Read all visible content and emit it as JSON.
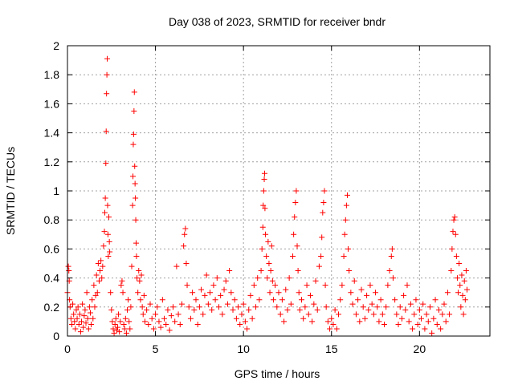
{
  "chart_data": {
    "type": "scatter",
    "title": "Day 038 of 2023, SRMTID for receiver bndr",
    "xlabel": "GPS time / hours",
    "ylabel": "SRMTID / TECUs",
    "xlim": [
      0,
      24
    ],
    "ylim": [
      0,
      2
    ],
    "xticks": [
      0,
      5,
      10,
      15,
      20
    ],
    "xtick_labels": [
      "0",
      "5",
      "10",
      "15",
      "20"
    ],
    "yticks": [
      0,
      0.2,
      0.4,
      0.6,
      0.8,
      1,
      1.2,
      1.4,
      1.6,
      1.8,
      2
    ],
    "ytick_labels": [
      "0",
      "0.2",
      "0.4",
      "0.6",
      "0.8",
      "1",
      "1.2",
      "1.4",
      "1.6",
      "1.8",
      "2"
    ],
    "grid": true,
    "marker": "+",
    "color": "#ff0000",
    "series": [
      {
        "name": "SRMTID",
        "points": [
          [
            0.0,
            0.3
          ],
          [
            0.05,
            0.48
          ],
          [
            0.08,
            0.45
          ],
          [
            0.1,
            0.38
          ],
          [
            0.12,
            0.25
          ],
          [
            0.15,
            0.2
          ],
          [
            0.2,
            0.12
          ],
          [
            0.25,
            0.08
          ],
          [
            0.3,
            0.22
          ],
          [
            0.35,
            0.15
          ],
          [
            0.4,
            0.1
          ],
          [
            0.45,
            0.05
          ],
          [
            0.5,
            0.18
          ],
          [
            0.55,
            0.12
          ],
          [
            0.6,
            0.2
          ],
          [
            0.65,
            0.08
          ],
          [
            0.7,
            0.15
          ],
          [
            0.75,
            0.03
          ],
          [
            0.8,
            0.1
          ],
          [
            0.85,
            0.22
          ],
          [
            0.9,
            0.06
          ],
          [
            0.95,
            0.14
          ],
          [
            1.0,
            0.18
          ],
          [
            1.05,
            0.09
          ],
          [
            1.1,
            0.3
          ],
          [
            1.15,
            0.12
          ],
          [
            1.2,
            0.05
          ],
          [
            1.25,
            0.2
          ],
          [
            1.3,
            0.16
          ],
          [
            1.35,
            0.08
          ],
          [
            1.4,
            0.25
          ],
          [
            1.45,
            0.12
          ],
          [
            1.5,
            0.35
          ],
          [
            1.55,
            0.2
          ],
          [
            1.6,
            0.28
          ],
          [
            1.65,
            0.42
          ],
          [
            1.7,
            0.3
          ],
          [
            1.75,
            0.5
          ],
          [
            1.8,
            0.38
          ],
          [
            1.85,
            0.45
          ],
          [
            1.9,
            0.52
          ],
          [
            1.95,
            0.4
          ],
          [
            2.0,
            0.48
          ],
          [
            2.05,
            0.62
          ],
          [
            2.1,
            0.72
          ],
          [
            2.12,
            0.85
          ],
          [
            2.15,
            0.95
          ],
          [
            2.18,
            1.19
          ],
          [
            2.2,
            1.41
          ],
          [
            2.22,
            1.67
          ],
          [
            2.24,
            1.8
          ],
          [
            2.26,
            1.91
          ],
          [
            2.28,
            0.9
          ],
          [
            2.3,
            0.7
          ],
          [
            2.32,
            0.55
          ],
          [
            2.35,
            0.82
          ],
          [
            2.38,
            0.65
          ],
          [
            2.4,
            0.58
          ],
          [
            2.45,
            0.3
          ],
          [
            2.5,
            0.18
          ],
          [
            2.55,
            0.1
          ],
          [
            2.6,
            0.05
          ],
          [
            2.65,
            0.02
          ],
          [
            2.7,
            0.08
          ],
          [
            2.75,
            0.12
          ],
          [
            2.8,
            0.04
          ],
          [
            2.85,
            0.06
          ],
          [
            2.9,
            0.15
          ],
          [
            2.95,
            0.03
          ],
          [
            3.0,
            0.1
          ],
          [
            3.05,
            0.35
          ],
          [
            3.1,
            0.38
          ],
          [
            3.15,
            0.3
          ],
          [
            3.2,
            0.08
          ],
          [
            3.25,
            0.05
          ],
          [
            3.3,
            0.12
          ],
          [
            3.35,
            0.02
          ],
          [
            3.4,
            0.18
          ],
          [
            3.45,
            0.25
          ],
          [
            3.5,
            0.1
          ],
          [
            3.55,
            0.05
          ],
          [
            3.6,
            0.2
          ],
          [
            3.65,
            0.48
          ],
          [
            3.7,
            0.9
          ],
          [
            3.72,
            1.1
          ],
          [
            3.74,
            1.32
          ],
          [
            3.76,
            1.39
          ],
          [
            3.78,
            1.55
          ],
          [
            3.8,
            1.68
          ],
          [
            3.82,
            1.17
          ],
          [
            3.84,
            1.05
          ],
          [
            3.86,
            0.95
          ],
          [
            3.88,
            0.8
          ],
          [
            3.9,
            0.64
          ],
          [
            3.92,
            0.55
          ],
          [
            3.95,
            0.4
          ],
          [
            4.0,
            0.3
          ],
          [
            4.05,
            0.45
          ],
          [
            4.1,
            0.38
          ],
          [
            4.15,
            0.25
          ],
          [
            4.2,
            0.42
          ],
          [
            4.25,
            0.2
          ],
          [
            4.3,
            0.15
          ],
          [
            4.35,
            0.28
          ],
          [
            4.4,
            0.1
          ],
          [
            4.5,
            0.18
          ],
          [
            4.6,
            0.08
          ],
          [
            4.7,
            0.22
          ],
          [
            4.8,
            0.12
          ],
          [
            4.9,
            0.05
          ],
          [
            5.0,
            0.15
          ],
          [
            5.1,
            0.2
          ],
          [
            5.2,
            0.1
          ],
          [
            5.3,
            0.06
          ],
          [
            5.4,
            0.25
          ],
          [
            5.5,
            0.12
          ],
          [
            5.6,
            0.08
          ],
          [
            5.7,
            0.18
          ],
          [
            5.8,
            0.04
          ],
          [
            5.9,
            0.14
          ],
          [
            6.0,
            0.2
          ],
          [
            6.1,
            0.1
          ],
          [
            6.2,
            0.48
          ],
          [
            6.3,
            0.15
          ],
          [
            6.4,
            0.08
          ],
          [
            6.5,
            0.22
          ],
          [
            6.6,
            0.62
          ],
          [
            6.65,
            0.7
          ],
          [
            6.7,
            0.74
          ],
          [
            6.75,
            0.5
          ],
          [
            6.8,
            0.35
          ],
          [
            6.9,
            0.2
          ],
          [
            7.0,
            0.12
          ],
          [
            7.1,
            0.3
          ],
          [
            7.2,
            0.18
          ],
          [
            7.3,
            0.25
          ],
          [
            7.4,
            0.08
          ],
          [
            7.5,
            0.2
          ],
          [
            7.6,
            0.32
          ],
          [
            7.7,
            0.15
          ],
          [
            7.8,
            0.28
          ],
          [
            7.9,
            0.42
          ],
          [
            8.0,
            0.22
          ],
          [
            8.1,
            0.3
          ],
          [
            8.2,
            0.18
          ],
          [
            8.3,
            0.35
          ],
          [
            8.4,
            0.25
          ],
          [
            8.5,
            0.4
          ],
          [
            8.6,
            0.2
          ],
          [
            8.7,
            0.28
          ],
          [
            8.8,
            0.15
          ],
          [
            8.9,
            0.32
          ],
          [
            9.0,
            0.38
          ],
          [
            9.1,
            0.22
          ],
          [
            9.2,
            0.45
          ],
          [
            9.3,
            0.3
          ],
          [
            9.4,
            0.18
          ],
          [
            9.5,
            0.25
          ],
          [
            9.6,
            0.12
          ],
          [
            9.7,
            0.2
          ],
          [
            9.8,
            0.08
          ],
          [
            9.9,
            0.15
          ],
          [
            10.0,
            0.22
          ],
          [
            10.1,
            0.1
          ],
          [
            10.2,
            0.05
          ],
          [
            10.3,
            0.18
          ],
          [
            10.4,
            0.28
          ],
          [
            10.5,
            0.12
          ],
          [
            10.6,
            0.35
          ],
          [
            10.7,
            0.2
          ],
          [
            10.8,
            0.4
          ],
          [
            10.9,
            0.25
          ],
          [
            11.0,
            0.45
          ],
          [
            11.05,
            0.6
          ],
          [
            11.1,
            0.75
          ],
          [
            11.12,
            0.9
          ],
          [
            11.15,
            1.0
          ],
          [
            11.18,
            1.08
          ],
          [
            11.2,
            1.12
          ],
          [
            11.22,
            0.88
          ],
          [
            11.25,
            0.7
          ],
          [
            11.3,
            0.55
          ],
          [
            11.35,
            0.4
          ],
          [
            11.4,
            0.65
          ],
          [
            11.45,
            0.5
          ],
          [
            11.5,
            0.3
          ],
          [
            11.55,
            0.45
          ],
          [
            11.6,
            0.62
          ],
          [
            11.65,
            0.38
          ],
          [
            11.7,
            0.25
          ],
          [
            11.8,
            0.35
          ],
          [
            11.9,
            0.2
          ],
          [
            12.0,
            0.3
          ],
          [
            12.1,
            0.15
          ],
          [
            12.2,
            0.25
          ],
          [
            12.3,
            0.1
          ],
          [
            12.4,
            0.32
          ],
          [
            12.5,
            0.18
          ],
          [
            12.6,
            0.4
          ],
          [
            12.7,
            0.22
          ],
          [
            12.8,
            0.55
          ],
          [
            12.85,
            0.7
          ],
          [
            12.9,
            0.82
          ],
          [
            12.95,
            0.92
          ],
          [
            13.0,
            1.0
          ],
          [
            13.05,
            0.62
          ],
          [
            13.1,
            0.45
          ],
          [
            13.15,
            0.3
          ],
          [
            13.2,
            0.18
          ],
          [
            13.3,
            0.25
          ],
          [
            13.4,
            0.12
          ],
          [
            13.5,
            0.2
          ],
          [
            13.6,
            0.35
          ],
          [
            13.7,
            0.15
          ],
          [
            13.8,
            0.28
          ],
          [
            13.9,
            0.1
          ],
          [
            14.0,
            0.22
          ],
          [
            14.1,
            0.38
          ],
          [
            14.2,
            0.18
          ],
          [
            14.3,
            0.48
          ],
          [
            14.4,
            0.55
          ],
          [
            14.45,
            0.68
          ],
          [
            14.5,
            0.85
          ],
          [
            14.55,
            0.92
          ],
          [
            14.6,
            1.0
          ],
          [
            14.65,
            0.35
          ],
          [
            14.7,
            0.2
          ],
          [
            14.8,
            0.1
          ],
          [
            14.9,
            0.05
          ],
          [
            15.0,
            0.12
          ],
          [
            15.1,
            0.08
          ],
          [
            15.2,
            0.18
          ],
          [
            15.3,
            0.05
          ],
          [
            15.4,
            0.15
          ],
          [
            15.5,
            0.25
          ],
          [
            15.6,
            0.35
          ],
          [
            15.7,
            0.55
          ],
          [
            15.75,
            0.7
          ],
          [
            15.8,
            0.8
          ],
          [
            15.85,
            0.9
          ],
          [
            15.9,
            0.97
          ],
          [
            15.95,
            0.6
          ],
          [
            16.0,
            0.45
          ],
          [
            16.1,
            0.3
          ],
          [
            16.2,
            0.22
          ],
          [
            16.3,
            0.38
          ],
          [
            16.4,
            0.15
          ],
          [
            16.5,
            0.25
          ],
          [
            16.6,
            0.1
          ],
          [
            16.7,
            0.32
          ],
          [
            16.8,
            0.2
          ],
          [
            16.9,
            0.12
          ],
          [
            17.0,
            0.28
          ],
          [
            17.1,
            0.18
          ],
          [
            17.2,
            0.35
          ],
          [
            17.3,
            0.22
          ],
          [
            17.4,
            0.15
          ],
          [
            17.5,
            0.3
          ],
          [
            17.6,
            0.2
          ],
          [
            17.7,
            0.1
          ],
          [
            17.8,
            0.25
          ],
          [
            17.9,
            0.15
          ],
          [
            18.0,
            0.08
          ],
          [
            18.1,
            0.2
          ],
          [
            18.2,
            0.35
          ],
          [
            18.3,
            0.45
          ],
          [
            18.4,
            0.55
          ],
          [
            18.45,
            0.6
          ],
          [
            18.5,
            0.4
          ],
          [
            18.6,
            0.25
          ],
          [
            18.7,
            0.15
          ],
          [
            18.8,
            0.08
          ],
          [
            18.9,
            0.2
          ],
          [
            19.0,
            0.12
          ],
          [
            19.1,
            0.28
          ],
          [
            19.2,
            0.18
          ],
          [
            19.3,
            0.35
          ],
          [
            19.4,
            0.1
          ],
          [
            19.5,
            0.22
          ],
          [
            19.6,
            0.05
          ],
          [
            19.7,
            0.15
          ],
          [
            19.8,
            0.25
          ],
          [
            19.9,
            0.08
          ],
          [
            20.0,
            0.18
          ],
          [
            20.1,
            0.12
          ],
          [
            20.2,
            0.22
          ],
          [
            20.3,
            0.05
          ],
          [
            20.4,
            0.15
          ],
          [
            20.5,
            0.1
          ],
          [
            20.6,
            0.2
          ],
          [
            20.7,
            0.02
          ],
          [
            20.8,
            0.12
          ],
          [
            20.9,
            0.25
          ],
          [
            21.0,
            0.08
          ],
          [
            21.1,
            0.18
          ],
          [
            21.2,
            0.05
          ],
          [
            21.3,
            0.15
          ],
          [
            21.4,
            0.22
          ],
          [
            21.5,
            0.1
          ],
          [
            21.6,
            0.3
          ],
          [
            21.7,
            0.15
          ],
          [
            21.8,
            0.45
          ],
          [
            21.85,
            0.6
          ],
          [
            21.9,
            0.72
          ],
          [
            21.95,
            0.8
          ],
          [
            22.0,
            0.82
          ],
          [
            22.05,
            0.7
          ],
          [
            22.1,
            0.55
          ],
          [
            22.15,
            0.4
          ],
          [
            22.2,
            0.3
          ],
          [
            22.25,
            0.5
          ],
          [
            22.3,
            0.35
          ],
          [
            22.35,
            0.2
          ],
          [
            22.4,
            0.42
          ],
          [
            22.45,
            0.28
          ],
          [
            22.5,
            0.15
          ],
          [
            22.55,
            0.38
          ],
          [
            22.6,
            0.25
          ],
          [
            22.65,
            0.45
          ],
          [
            22.7,
            0.32
          ]
        ]
      }
    ]
  }
}
